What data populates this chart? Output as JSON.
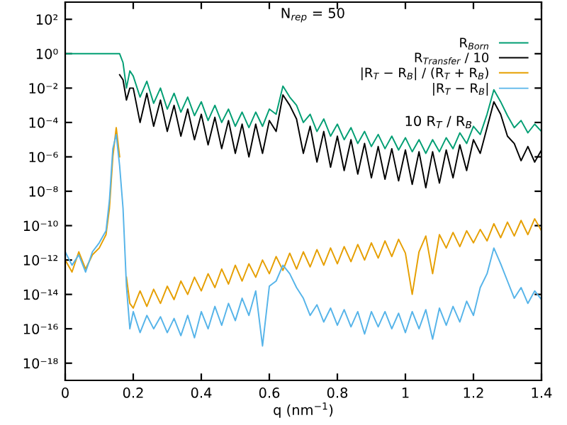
{
  "chart_data": {
    "type": "line",
    "xlabel": "q (nm$^{−1}$)",
    "annotations": [
      "N$_{rep}$ = 50",
      "10 R$_{T}$ / R$_{B}$"
    ],
    "x": [
      0,
      0.02,
      0.04,
      0.06,
      0.08,
      0.1,
      0.12,
      0.13,
      0.14,
      0.15,
      0.16,
      0.17,
      0.18,
      0.19,
      0.2,
      0.22,
      0.24,
      0.26,
      0.28,
      0.3,
      0.32,
      0.34,
      0.36,
      0.38,
      0.4,
      0.42,
      0.44,
      0.46,
      0.48,
      0.5,
      0.52,
      0.54,
      0.56,
      0.58,
      0.6,
      0.62,
      0.64,
      0.66,
      0.68,
      0.7,
      0.72,
      0.74,
      0.76,
      0.78,
      0.8,
      0.82,
      0.84,
      0.86,
      0.88,
      0.9,
      0.92,
      0.94,
      0.96,
      0.98,
      1.0,
      1.02,
      1.04,
      1.06,
      1.08,
      1.1,
      1.12,
      1.14,
      1.16,
      1.18,
      1.2,
      1.22,
      1.24,
      1.26,
      1.28,
      1.3,
      1.32,
      1.34,
      1.36,
      1.38,
      1.4
    ],
    "series": [
      {
        "name": "R$_{Born}$",
        "color": "#009e73",
        "values": [
          1,
          1,
          1,
          1,
          1,
          1,
          1,
          1,
          1,
          1,
          1,
          0.3,
          0.01,
          0.1,
          0.05,
          0.003,
          0.025,
          0.0013,
          0.01,
          0.0006,
          0.005,
          0.0004,
          0.003,
          0.00025,
          0.0016,
          0.00013,
          0.001,
          0.0001,
          0.0006,
          6e-05,
          0.0004,
          5e-05,
          0.0004,
          6e-05,
          0.0006,
          0.0003,
          0.013,
          0.003,
          0.001,
          0.0001,
          0.0003,
          3e-05,
          0.00016,
          1.6e-05,
          8e-05,
          1e-05,
          5e-05,
          6e-06,
          3e-05,
          4e-06,
          2e-05,
          3e-06,
          1.6e-05,
          2.5e-06,
          1.3e-05,
          2e-06,
          1e-05,
          1.6e-06,
          1e-05,
          2e-06,
          1.3e-05,
          3e-06,
          2.5e-05,
          6e-06,
          6e-05,
          2e-05,
          0.0003,
          0.008,
          0.0016,
          0.00025,
          5e-05,
          0.00013,
          2.5e-05,
          8e-05,
          3e-05
        ]
      },
      {
        "name": "R$_{Transfer}$ / 10",
        "color": "#000000",
        "values": [
          null,
          null,
          null,
          null,
          null,
          null,
          null,
          null,
          null,
          null,
          0.06,
          0.03,
          0.002,
          0.01,
          0.01,
          0.0001,
          0.005,
          6e-05,
          0.002,
          3e-05,
          0.001,
          1.6e-05,
          0.0006,
          1e-05,
          0.0003,
          5e-06,
          0.0002,
          3e-06,
          0.00013,
          1.6e-06,
          8e-05,
          1e-06,
          8e-05,
          1.6e-06,
          0.00013,
          3e-05,
          0.004,
          0.001,
          0.00016,
          1.6e-06,
          6e-05,
          5e-07,
          3e-05,
          2.5e-07,
          1.6e-05,
          1.6e-07,
          1e-05,
          1e-07,
          6e-06,
          6e-08,
          4e-06,
          5e-08,
          3e-06,
          4e-08,
          2.5e-06,
          2.5e-08,
          2e-06,
          1.6e-08,
          2e-06,
          3e-08,
          2.5e-06,
          6e-08,
          5e-06,
          1.6e-07,
          1e-05,
          1.6e-06,
          5e-05,
          0.0016,
          0.0003,
          1.6e-05,
          6e-06,
          6e-07,
          4e-06,
          5e-07,
          2.5e-06
        ]
      },
      {
        "name": "|R$_{T}$ − R$_{B}$| / (R$_{T}$ + R$_{B}$)",
        "color": "#e69f00",
        "values": [
          1e-12,
          2e-13,
          3e-12,
          3e-13,
          2e-12,
          5e-12,
          3e-11,
          1e-09,
          1e-06,
          5e-05,
          1e-06,
          null,
          1e-13,
          3e-15,
          1.6e-15,
          1.6e-14,
          2e-15,
          2e-14,
          3e-15,
          3e-14,
          5e-15,
          6e-14,
          1e-14,
          1e-13,
          1.6e-14,
          1.6e-13,
          2.5e-14,
          3e-13,
          4e-14,
          5e-13,
          6e-14,
          6e-13,
          1e-13,
          1e-12,
          1.6e-13,
          1.6e-12,
          2.5e-13,
          2.5e-12,
          3e-13,
          3e-12,
          4e-13,
          4e-12,
          5e-13,
          5e-12,
          6e-13,
          6e-12,
          8e-13,
          8e-12,
          1e-12,
          1e-11,
          1.3e-12,
          1.3e-11,
          1.6e-12,
          1.6e-11,
          2.5e-12,
          1e-14,
          3e-12,
          2.5e-11,
          1.6e-13,
          3e-11,
          5e-12,
          4e-11,
          6e-12,
          5e-11,
          1e-11,
          6e-11,
          1.3e-11,
          1.3e-10,
          2e-11,
          1.6e-10,
          2.5e-11,
          2e-10,
          3e-11,
          2.5e-10,
          5e-11
        ]
      },
      {
        "name": "|R$_{T}$ − R$_{B}$|",
        "color": "#56b4e9",
        "values": [
          3e-12,
          5e-13,
          2e-12,
          2e-13,
          3e-12,
          1e-11,
          5e-11,
          3e-09,
          3e-06,
          2e-05,
          3e-07,
          1e-09,
          3e-14,
          1e-16,
          1e-15,
          6e-17,
          6e-16,
          1e-16,
          5e-16,
          6e-17,
          4e-16,
          4e-17,
          6e-16,
          3e-17,
          1e-15,
          1e-16,
          2e-15,
          1.6e-16,
          3e-15,
          3e-16,
          6e-15,
          6e-16,
          1.6e-14,
          1e-17,
          3e-14,
          6e-14,
          5e-13,
          1.6e-13,
          2.5e-14,
          6e-15,
          6e-16,
          2.5e-15,
          2.5e-16,
          1.6e-15,
          1.6e-16,
          1.3e-15,
          1.3e-16,
          1e-15,
          5e-17,
          1e-15,
          1.3e-16,
          1e-15,
          1e-16,
          8e-16,
          6e-17,
          1e-15,
          1e-16,
          1.3e-15,
          2.5e-17,
          1.6e-15,
          1.6e-16,
          2e-15,
          2.5e-16,
          4e-15,
          6e-16,
          2.5e-14,
          1.6e-13,
          5e-12,
          6e-13,
          6e-14,
          6e-15,
          2.5e-14,
          3e-15,
          1.6e-14,
          5e-15
        ]
      }
    ],
    "log": "y",
    "xlim": [
      0,
      1.4
    ],
    "xticks": [
      0,
      0.2,
      0.4,
      0.6,
      0.8,
      1,
      1.2,
      1.4
    ],
    "ylim": [
      1e-19,
      1000
    ],
    "yticks": [
      {
        "value": 100,
        "label": "10²"
      },
      {
        "value": 1,
        "label": "10⁰"
      },
      {
        "value": 0.01,
        "label": "10⁻²"
      },
      {
        "value": 0.0001,
        "label": "10⁻⁴"
      },
      {
        "value": 1e-06,
        "label": "10⁻⁶"
      },
      {
        "value": 1e-08,
        "label": "10⁻⁸"
      },
      {
        "value": 1e-10,
        "label": "10⁻¹⁰"
      },
      {
        "value": 1e-12,
        "label": "10⁻¹²"
      },
      {
        "value": 1e-14,
        "label": "10⁻¹⁴"
      },
      {
        "value": 1e-16,
        "label": "10⁻¹⁶"
      },
      {
        "value": 1e-18,
        "label": "10⁻¹⁸"
      }
    ],
    "legend": "top right",
    "grid": false
  }
}
